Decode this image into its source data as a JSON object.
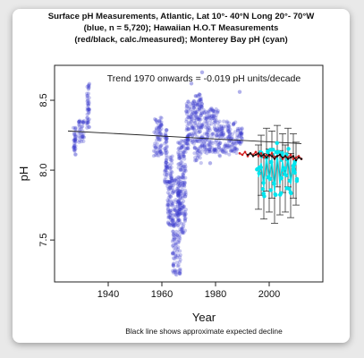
{
  "chart_data": {
    "type": "scatter",
    "title_lines": [
      "Surface pH Measurements, Atlantic, Lat 10°- 40°N Long 20°- 70°W",
      "(blue, n = 5,720); Hawaiian H.O.T Measurements",
      "(red/black, calc./measured); Monterey Bay pH (cyan)"
    ],
    "annotation": "Trend 1970 onwards = -0.019 pH units/decade",
    "caption": "Black line shows approximate expected decline",
    "xlabel": "Year",
    "ylabel": "pH",
    "xlim": [
      1920,
      2020
    ],
    "ylim": [
      7.2,
      8.75
    ],
    "x_ticks": [
      {
        "value": 1940,
        "label": "1940"
      },
      {
        "value": 1960,
        "label": "1960"
      },
      {
        "value": 1980,
        "label": "1980"
      },
      {
        "value": 2000,
        "label": "2000"
      }
    ],
    "y_ticks": [
      {
        "value": 7.5,
        "label": "7.5"
      },
      {
        "value": 8.0,
        "label": "8.0"
      },
      {
        "value": 8.5,
        "label": "8.5"
      }
    ],
    "grid": false,
    "legend": "none",
    "colors": {
      "atlantic": "#3a3acd",
      "hot_calc": "#d42020",
      "hot_measured": "#111111",
      "monterey": "#00e5ee",
      "trend_line": "#222222"
    },
    "trend_line": {
      "x": [
        1925,
        2012
      ],
      "y": [
        8.28,
        8.19
      ]
    },
    "series": [
      {
        "key": "atlantic",
        "clusters": [
          {
            "x": [
              1927,
              1928
            ],
            "y": [
              8.1,
              8.32
            ]
          },
          {
            "x": [
              1929,
              1931
            ],
            "y": [
              8.2,
              8.36
            ]
          },
          {
            "x": [
              1932,
              1933
            ],
            "y": [
              8.3,
              8.62
            ]
          },
          {
            "x": [
              1957,
              1960
            ],
            "y": [
              8.1,
              8.38
            ]
          },
          {
            "x": [
              1961,
              1962
            ],
            "y": [
              7.9,
              8.3
            ]
          },
          {
            "x": [
              1962,
              1964
            ],
            "y": [
              7.6,
              8.1
            ]
          },
          {
            "x": [
              1964,
              1967
            ],
            "y": [
              7.25,
              7.95
            ]
          },
          {
            "x": [
              1966,
              1969
            ],
            "y": [
              7.55,
              8.22
            ]
          },
          {
            "x": [
              1969,
              1972
            ],
            "y": [
              8.15,
              8.5
            ]
          },
          {
            "x": [
              1972,
              1975
            ],
            "y": [
              8.05,
              8.55
            ]
          },
          {
            "x": [
              1975,
              1981
            ],
            "y": [
              8.12,
              8.45
            ]
          },
          {
            "x": [
              1981,
              1988
            ],
            "y": [
              8.1,
              8.35
            ]
          },
          {
            "x": [
              1988,
              1990
            ],
            "y": [
              8.18,
              8.3
            ]
          }
        ],
        "points": [
          {
            "x": 1965,
            "y": 8.85
          },
          {
            "x": 1971,
            "y": 8.62
          },
          {
            "x": 1975,
            "y": 8.7
          },
          {
            "x": 1989,
            "y": 8.56
          },
          {
            "x": 1967,
            "y": 8.0
          },
          {
            "x": 1978,
            "y": 8.05
          }
        ]
      },
      {
        "key": "hot_calc",
        "x": [
          1989,
          1990,
          1991,
          1992,
          1993,
          1994,
          1995,
          1996,
          1997,
          1998,
          1999,
          2000,
          2001,
          2002,
          2003,
          2004,
          2005,
          2006,
          2007,
          2008,
          2009,
          2010,
          2011,
          2012
        ],
        "y": [
          8.12,
          8.11,
          8.13,
          8.1,
          8.12,
          8.11,
          8.13,
          8.1,
          8.12,
          8.09,
          8.11,
          8.1,
          8.12,
          8.09,
          8.1,
          8.11,
          8.08,
          8.1,
          8.09,
          8.11,
          8.08,
          8.09,
          8.1,
          8.08
        ]
      },
      {
        "key": "hot_measured",
        "x": [
          1992,
          1993,
          1994,
          1995,
          1996,
          1997,
          1998,
          1999,
          2000,
          2001,
          2002,
          2003,
          2004,
          2005,
          2006,
          2007,
          2008,
          2009,
          2010,
          2011,
          2012
        ],
        "y": [
          8.11,
          8.12,
          8.1,
          8.11,
          8.12,
          8.1,
          8.11,
          8.09,
          8.11,
          8.1,
          8.08,
          8.1,
          8.11,
          8.09,
          8.1,
          8.08,
          8.09,
          8.1,
          8.07,
          8.09,
          8.08
        ]
      },
      {
        "key": "monterey",
        "x": [
          1996,
          1997,
          1998,
          1999,
          2000,
          2001,
          2002,
          2003,
          2004,
          2005,
          2006,
          2007,
          2008,
          2009,
          2010
        ],
        "y": [
          7.95,
          8.05,
          7.88,
          8.1,
          7.92,
          8.08,
          7.85,
          8.12,
          7.9,
          8.06,
          7.95,
          8.1,
          7.9,
          8.05,
          7.98
        ],
        "error_low": [
          7.72,
          7.82,
          7.65,
          7.85,
          7.7,
          7.8,
          7.62,
          7.88,
          7.68,
          7.84,
          7.7,
          7.88,
          7.66,
          7.8,
          7.75
        ],
        "error_high": [
          8.18,
          8.25,
          8.12,
          8.3,
          8.15,
          8.28,
          8.1,
          8.32,
          8.14,
          8.26,
          8.18,
          8.3,
          8.12,
          8.26,
          8.2
        ]
      }
    ]
  }
}
